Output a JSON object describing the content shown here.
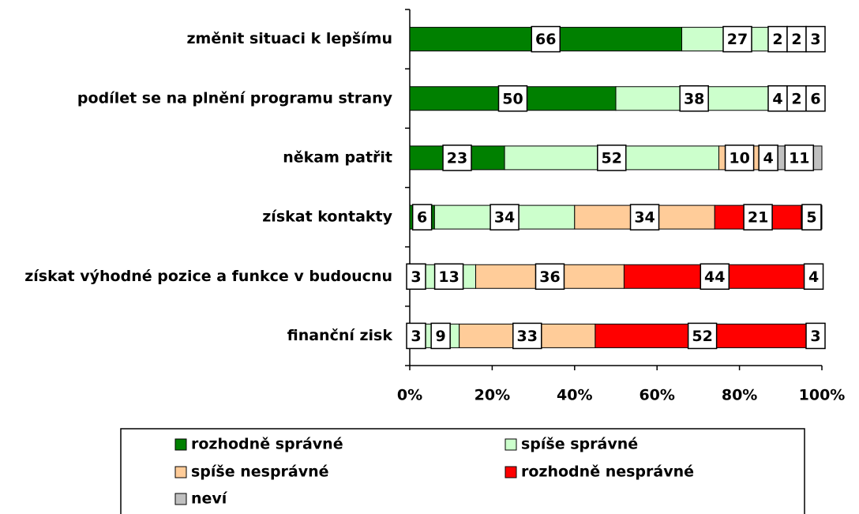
{
  "chart_data": {
    "type": "stacked-bar-horizontal",
    "categories": [
      "změnit situaci k lepšímu",
      "podílet se na plnění programu strany",
      "někam patřit",
      "získat kontakty",
      "získat výhodné pozice a funkce v budoucnu",
      "finanční zisk"
    ],
    "series": [
      {
        "name": "rozhodně správné",
        "color": "#008000",
        "values": [
          66,
          50,
          23,
          6,
          3,
          3
        ]
      },
      {
        "name": "spíše správné",
        "color": "#CCFFCC",
        "values": [
          27,
          38,
          52,
          34,
          13,
          9
        ]
      },
      {
        "name": "spíše nesprávné",
        "color": "#FFCC99",
        "values": [
          2,
          4,
          10,
          34,
          36,
          33
        ]
      },
      {
        "name": "rozhodně nesprávné",
        "color": "#FF0000",
        "values": [
          2,
          2,
          4,
          21,
          44,
          52
        ]
      },
      {
        "name": "neví",
        "color": "#C0C0C0",
        "values": [
          3,
          6,
          11,
          5,
          4,
          3
        ]
      }
    ],
    "xlim": [
      0,
      100
    ],
    "xticks": [
      {
        "value": 0,
        "label": "0%"
      },
      {
        "value": 20,
        "label": "20%"
      },
      {
        "value": 40,
        "label": "40%"
      },
      {
        "value": 60,
        "label": "60%"
      },
      {
        "value": 80,
        "label": "80%"
      },
      {
        "value": 100,
        "label": "100%"
      }
    ]
  }
}
